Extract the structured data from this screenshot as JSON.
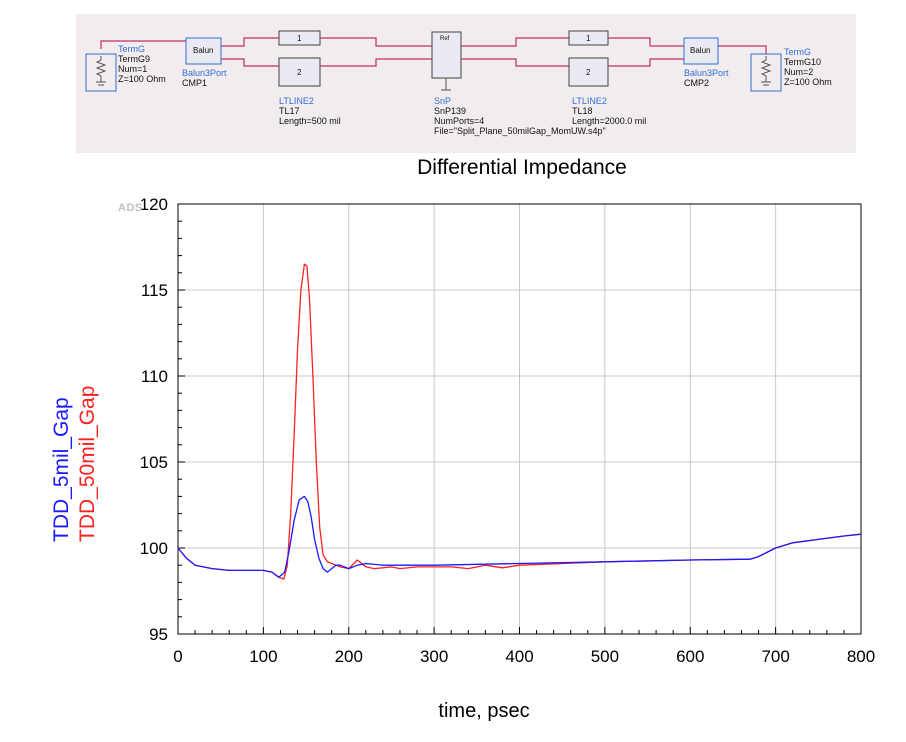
{
  "schematic": {
    "termg9": {
      "lines": [
        "TermG",
        "TermG9",
        "Num=1",
        "Z=100 Ohm"
      ]
    },
    "balun1": {
      "lines": [
        "Balun3Port",
        "CMP1"
      ],
      "box_text": "Balun"
    },
    "tl17": {
      "lines": [
        "LTLINE2",
        "TL17",
        "Length=500 mil"
      ],
      "pins": [
        "1",
        "2"
      ]
    },
    "snp": {
      "lines": [
        "SnP",
        "SnP139",
        "NumPorts=4",
        "File=\"Split_Plane_50milGap_MomUW.s4p\""
      ],
      "box_text": "Ref"
    },
    "tl18": {
      "lines": [
        "LTLINE2",
        "TL18",
        "Length=2000.0 mil"
      ],
      "pins": [
        "1",
        "2"
      ]
    },
    "balun2": {
      "lines": [
        "Balun3Port",
        "CMP2"
      ],
      "box_text": "Balun"
    },
    "termg10": {
      "lines": [
        "TermG",
        "TermG10",
        "Num=2",
        "Z=100 Ohm"
      ]
    }
  },
  "watermark": "ADS",
  "colors": {
    "blue": "#1a1aff",
    "red": "#ff2020",
    "schematic_bg": "#f2ecee",
    "wire": "#c0306a"
  },
  "chart_data": {
    "type": "line",
    "title": "Differential Impedance",
    "xlabel": "time, psec",
    "ylabels": [
      "TDD_5mil_Gap",
      "TDD_50mil_Gap"
    ],
    "xlim": [
      0,
      800
    ],
    "ylim": [
      95,
      120
    ],
    "xticks": [
      "0",
      "100",
      "200",
      "300",
      "400",
      "500",
      "600",
      "700",
      "800"
    ],
    "yticks": [
      "95",
      "100",
      "105",
      "110",
      "115",
      "120"
    ],
    "grid": true,
    "series": [
      {
        "name": "TDD_5mil_Gap",
        "color": "#1a1aff",
        "x": [
          0,
          10,
          20,
          40,
          60,
          80,
          100,
          110,
          118,
          125,
          130,
          136,
          142,
          148,
          152,
          156,
          160,
          165,
          170,
          175,
          180,
          185,
          190,
          200,
          210,
          220,
          240,
          260,
          300,
          400,
          500,
          600,
          670,
          680,
          700,
          720,
          750,
          780,
          800
        ],
        "y": [
          100.0,
          99.4,
          99.0,
          98.8,
          98.7,
          98.7,
          98.7,
          98.6,
          98.3,
          98.6,
          99.8,
          101.6,
          102.8,
          103.0,
          102.7,
          101.8,
          100.5,
          99.4,
          98.8,
          98.6,
          98.8,
          99.0,
          99.0,
          98.8,
          99.0,
          99.1,
          99.0,
          99.0,
          99.0,
          99.1,
          99.2,
          99.3,
          99.35,
          99.5,
          100.0,
          100.3,
          100.5,
          100.7,
          100.8
        ]
      },
      {
        "name": "TDD_50mil_Gap",
        "color": "#ff2020",
        "x": [
          0,
          10,
          20,
          40,
          60,
          80,
          100,
          110,
          118,
          124,
          128,
          132,
          136,
          140,
          144,
          148,
          151,
          154,
          158,
          162,
          166,
          170,
          175,
          180,
          190,
          200,
          210,
          220,
          230,
          240,
          250,
          260,
          280,
          300,
          320,
          340,
          360,
          380,
          400,
          500,
          600,
          670,
          680,
          700,
          720,
          750,
          780,
          800
        ],
        "y": [
          100.0,
          99.4,
          99.0,
          98.8,
          98.7,
          98.7,
          98.7,
          98.6,
          98.3,
          98.2,
          99.0,
          102.0,
          106.5,
          111.5,
          115.0,
          116.5,
          116.4,
          114.5,
          110.0,
          105.0,
          101.2,
          99.6,
          99.2,
          99.1,
          98.9,
          98.8,
          99.3,
          98.9,
          98.8,
          98.85,
          98.9,
          98.8,
          98.9,
          98.9,
          98.9,
          98.8,
          99.0,
          98.85,
          99.0,
          99.2,
          99.3,
          99.35,
          99.5,
          100.0,
          100.3,
          100.5,
          100.7,
          100.8
        ]
      }
    ]
  }
}
